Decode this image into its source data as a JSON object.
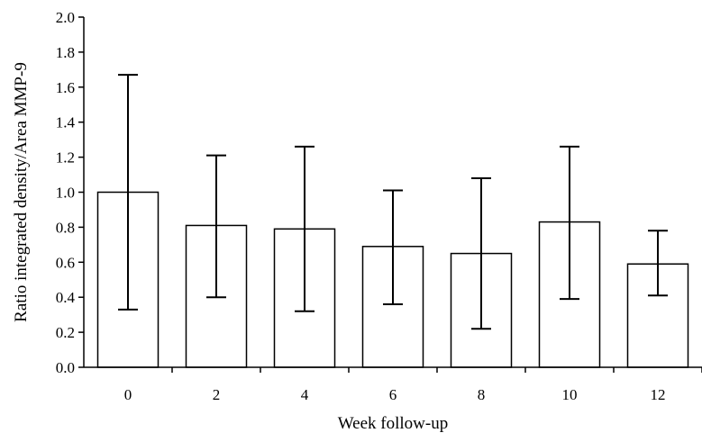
{
  "chart_data": {
    "type": "bar",
    "title": "",
    "xlabel": "Week follow-up",
    "ylabel": "Ratio integrated density/Area MMP-9",
    "categories": [
      "0",
      "2",
      "4",
      "6",
      "8",
      "10",
      "12"
    ],
    "values": [
      1.0,
      0.81,
      0.79,
      0.69,
      0.65,
      0.83,
      0.59
    ],
    "error_upper": [
      1.67,
      1.21,
      1.26,
      1.01,
      1.08,
      1.26,
      0.78
    ],
    "error_lower": [
      0.33,
      0.4,
      0.32,
      0.36,
      0.22,
      0.39,
      0.41
    ],
    "ylim": [
      0,
      2.0
    ],
    "yticks": [
      "0.0",
      "0.2",
      "0.4",
      "0.6",
      "0.8",
      "1.0",
      "1.2",
      "1.4",
      "1.6",
      "1.8",
      "2.0"
    ],
    "grid": false,
    "colors": {
      "bar_fill": "#ffffff",
      "bar_stroke": "#000000"
    }
  }
}
